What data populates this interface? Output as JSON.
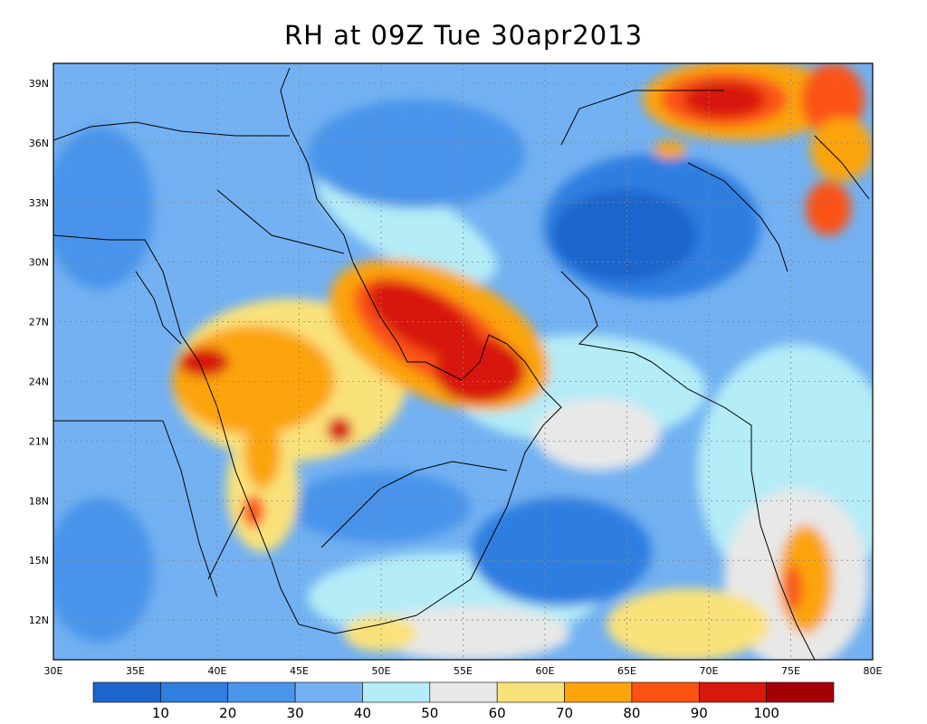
{
  "title": "RH at 09Z Tue 30apr2013",
  "map": {
    "lon_range": [
      30,
      80
    ],
    "lat_range": [
      10,
      40
    ],
    "lon_ticks": [
      "30E",
      "35E",
      "40E",
      "45E",
      "50E",
      "55E",
      "60E",
      "65E",
      "70E",
      "75E",
      "80E"
    ],
    "lat_ticks": [
      "12N",
      "15N",
      "18N",
      "21N",
      "24N",
      "27N",
      "30N",
      "33N",
      "36N",
      "39N"
    ],
    "grid": "dotted"
  },
  "colorbar": {
    "colors": [
      "#1d65cc",
      "#2f7ee0",
      "#4a94ea",
      "#73b1f2",
      "#b4ecf7",
      "#e8e8e8",
      "#fae27a",
      "#fba40c",
      "#fb5212",
      "#d7180c",
      "#a50005"
    ],
    "labels": [
      "10",
      "20",
      "30",
      "40",
      "50",
      "60",
      "70",
      "80",
      "90",
      "100"
    ]
  }
}
